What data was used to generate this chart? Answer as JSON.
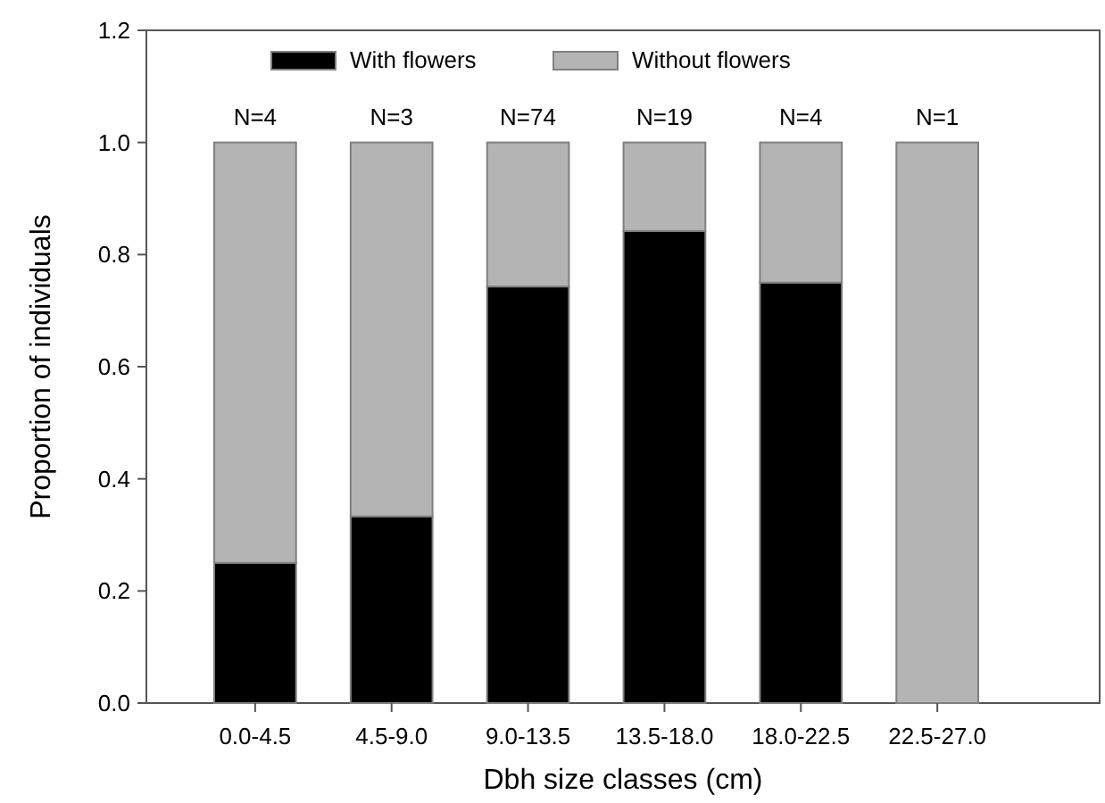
{
  "chart_data": {
    "type": "bar",
    "stacked": true,
    "xlabel": "Dbh size classes (cm)",
    "ylabel": "Proportion of individuals",
    "categories": [
      "0.0-4.5",
      "4.5-9.0",
      "9.0-13.5",
      "13.5-18.0",
      "18.0-22.5",
      "22.5-27.0"
    ],
    "series": [
      {
        "name": "With flowers",
        "color": "#000000",
        "values": [
          0.25,
          0.333,
          0.743,
          0.842,
          0.75,
          0
        ]
      },
      {
        "name": "Without flowers",
        "color": "#b4b4b4",
        "values": [
          0.75,
          0.667,
          0.257,
          0.158,
          0.25,
          1
        ]
      }
    ],
    "ylim": [
      0,
      1.2
    ],
    "yticks": [
      {
        "value": 0,
        "label": "0.0"
      },
      {
        "value": 0.2,
        "label": "0.2"
      },
      {
        "value": 0.4,
        "label": "0.4"
      },
      {
        "value": 0.6,
        "label": "0.6"
      },
      {
        "value": 0.8,
        "label": "0.8"
      },
      {
        "value": 1,
        "label": "1.0"
      },
      {
        "value": 1.2,
        "label": "1.2"
      }
    ],
    "legend": "top left",
    "annotations": [
      {
        "text": "N=4",
        "x": "0.0-4.5",
        "y": 1
      },
      {
        "text": "N=3",
        "x": "4.5-9.0",
        "y": 1
      },
      {
        "text": "N=74",
        "x": "9.0-13.5",
        "y": 1
      },
      {
        "text": "N=19",
        "x": "13.5-18.0",
        "y": 1
      },
      {
        "text": "N=4",
        "x": "18.0-22.5",
        "y": 1
      },
      {
        "text": "N=1",
        "x": "22.5-27.0",
        "y": 1
      }
    ]
  }
}
